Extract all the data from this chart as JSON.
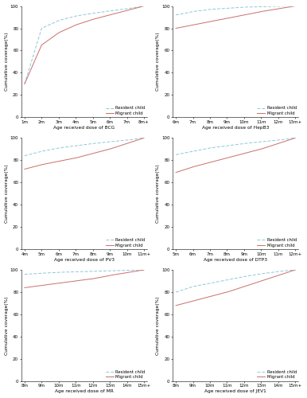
{
  "panels": [
    {
      "xlabel": "Age received dose of BCG",
      "xtick_labels": [
        "1m",
        "2m",
        "3m",
        "4m",
        "5m",
        "6m",
        "7m",
        "8m+"
      ],
      "resident": [
        30,
        80,
        87,
        91,
        93.5,
        95.5,
        97.5,
        100
      ],
      "migrant": [
        30,
        65,
        76,
        83,
        88,
        92,
        96,
        100
      ]
    },
    {
      "xlabel": "Age received dose of HepB3",
      "xtick_labels": [
        "6m",
        "7m",
        "8m",
        "9m",
        "10m",
        "11m",
        "12m",
        "13m+"
      ],
      "resident": [
        92,
        95,
        97,
        98,
        99,
        99.3,
        99.7,
        100
      ],
      "migrant": [
        80,
        83,
        86,
        89,
        92,
        95,
        97.5,
        100
      ]
    },
    {
      "xlabel": "Age received dose of PV3",
      "xtick_labels": [
        "4m",
        "5m",
        "6m",
        "7m",
        "8m",
        "9m",
        "10m",
        "11m+"
      ],
      "resident": [
        84,
        88,
        91,
        93,
        95,
        96.5,
        98,
        100
      ],
      "migrant": [
        72,
        76,
        79,
        82,
        86,
        90,
        95,
        100
      ]
    },
    {
      "xlabel": "Age received dose of DTP3",
      "xtick_labels": [
        "5m",
        "6m",
        "7m",
        "8m",
        "9m",
        "10m",
        "11m",
        "12m+"
      ],
      "resident": [
        85,
        88,
        91,
        93,
        95,
        96.5,
        98,
        100
      ],
      "migrant": [
        69,
        74,
        78,
        82,
        86,
        90,
        95,
        100
      ]
    },
    {
      "xlabel": "Age received dose of MR",
      "xtick_labels": [
        "8m",
        "9m",
        "10m",
        "11m",
        "12m",
        "13m",
        "14m",
        "15m+"
      ],
      "resident": [
        96,
        97,
        97.8,
        98.3,
        98.7,
        99.1,
        99.5,
        100
      ],
      "migrant": [
        84,
        86,
        88,
        90,
        92,
        95,
        97.5,
        100
      ]
    },
    {
      "xlabel": "Age received dose of JEV1",
      "xtick_labels": [
        "8m",
        "9m",
        "10m",
        "11m",
        "12m",
        "13m",
        "14m",
        "15m+"
      ],
      "resident": [
        80,
        85,
        88,
        91,
        94,
        96.5,
        98.5,
        100
      ],
      "migrant": [
        68,
        72,
        76,
        80,
        85,
        90,
        95,
        100
      ]
    }
  ],
  "resident_color": "#8cc8d8",
  "migrant_color": "#c8706a",
  "resident_linestyle": "--",
  "migrant_linestyle": "-",
  "ylabel": "Cumulative coverage(%)",
  "yticks": [
    0,
    20,
    40,
    60,
    80,
    100
  ],
  "legend_labels": [
    "Resident child",
    "Migrant child"
  ],
  "bg_color": "#ffffff"
}
